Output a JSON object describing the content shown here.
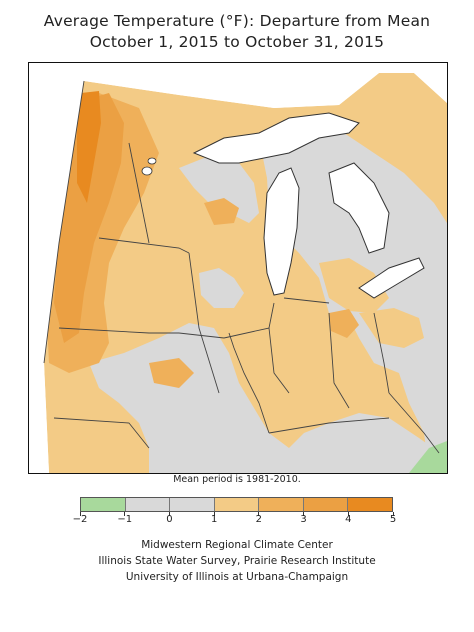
{
  "title": {
    "line1": "Average Temperature (°F): Departure from Mean",
    "line2": "October 1, 2015 to October 31, 2015"
  },
  "note": "Mean period is 1981-2010.",
  "legend": {
    "bins": [
      {
        "from": -2,
        "to": -1,
        "color": "#a8d99c"
      },
      {
        "from": -1,
        "to": 0,
        "color": "#d9d9d9"
      },
      {
        "from": 0,
        "to": 1,
        "color": "#d9d9d9"
      },
      {
        "from": 1,
        "to": 2,
        "color": "#f3cb86"
      },
      {
        "from": 2,
        "to": 3,
        "color": "#efb05a"
      },
      {
        "from": 3,
        "to": 4,
        "color": "#eba043"
      },
      {
        "from": 4,
        "to": 5,
        "color": "#e88a20"
      }
    ],
    "tick_labels": [
      "−2",
      "−1",
      "0",
      "1",
      "2",
      "3",
      "4",
      "5"
    ]
  },
  "colors": {
    "lake": "#ffffff",
    "outside": "#ffffff",
    "borders": "#444444"
  },
  "credits": {
    "line1": "Midwestern Regional Climate Center",
    "line2": "Illinois State Water Survey, Prairie Research Institute",
    "line3": "University of Illinois at Urbana-Champaign"
  }
}
